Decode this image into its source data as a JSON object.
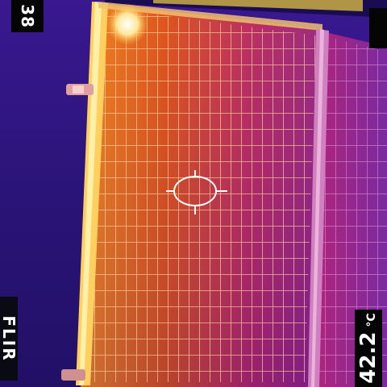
{
  "overlay": {
    "top_left_value": "38",
    "brand_mark": "FLIR",
    "temperature_value": "42.2",
    "temperature_unit": "°C"
  },
  "palette": {
    "cold": "#1a0f5e",
    "cool": "#4a1a8c",
    "warm": "#b0205e",
    "hot": "#e0501a",
    "hotter": "#f59a1a",
    "hottest": "#ffe89a"
  },
  "crosshair_icon": "spot-meter-crosshair-icon"
}
